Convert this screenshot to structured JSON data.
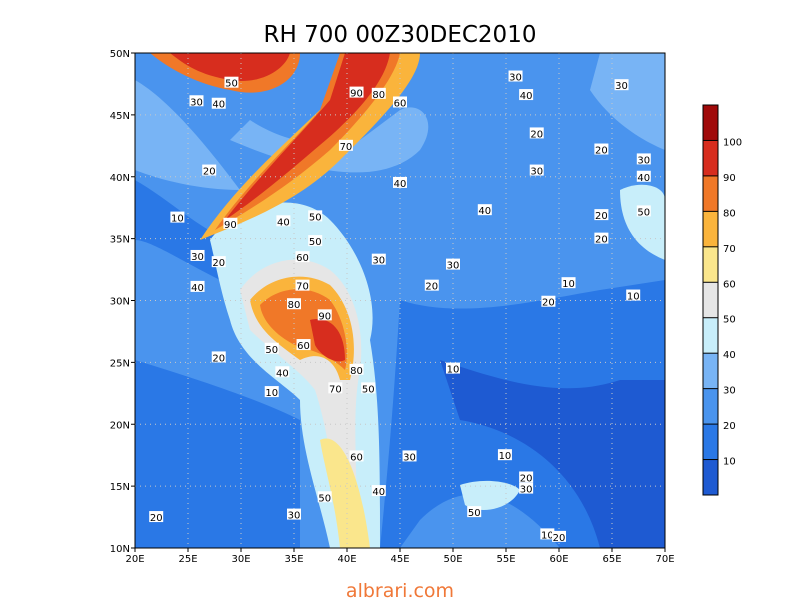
{
  "chart_data": {
    "type": "contour_map",
    "title": "RH 700 00Z30DEC2010",
    "footer": "albrari.com",
    "xlim": [
      20,
      70
    ],
    "ylim": [
      10,
      50
    ],
    "xticks": [
      {
        "value": 20,
        "label": "20E"
      },
      {
        "value": 25,
        "label": "25E"
      },
      {
        "value": 30,
        "label": "30E"
      },
      {
        "value": 35,
        "label": "35E"
      },
      {
        "value": 40,
        "label": "40E"
      },
      {
        "value": 45,
        "label": "45E"
      },
      {
        "value": 50,
        "label": "50E"
      },
      {
        "value": 55,
        "label": "55E"
      },
      {
        "value": 60,
        "label": "60E"
      },
      {
        "value": 65,
        "label": "65E"
      },
      {
        "value": 70,
        "label": "70E"
      }
    ],
    "yticks": [
      {
        "value": 10,
        "label": "10N"
      },
      {
        "value": 15,
        "label": "15N"
      },
      {
        "value": 20,
        "label": "20N"
      },
      {
        "value": 25,
        "label": "25N"
      },
      {
        "value": 30,
        "label": "30N"
      },
      {
        "value": 35,
        "label": "35N"
      },
      {
        "value": 40,
        "label": "40N"
      },
      {
        "value": 45,
        "label": "45N"
      },
      {
        "value": 50,
        "label": "50N"
      }
    ],
    "grid": true,
    "colorbar": {
      "levels": [
        10,
        20,
        30,
        40,
        50,
        60,
        70,
        80,
        90,
        100
      ],
      "colors": [
        "#1e5ad2",
        "#2a78e6",
        "#4a94ee",
        "#78b4f5",
        "#c8eefa",
        "#e6e6e6",
        "#fae68c",
        "#fab43c",
        "#f07828",
        "#d72d1e",
        "#a00a0a"
      ]
    },
    "contour_labels": [
      {
        "value": 50,
        "lon": 29.1,
        "lat": 47.6
      },
      {
        "value": 30,
        "lon": 25.8,
        "lat": 46.1
      },
      {
        "value": 40,
        "lon": 27.9,
        "lat": 45.9
      },
      {
        "value": 90,
        "lon": 40.9,
        "lat": 46.8
      },
      {
        "value": 80,
        "lon": 43.0,
        "lat": 46.7
      },
      {
        "value": 60,
        "lon": 45.0,
        "lat": 46.0
      },
      {
        "value": 30,
        "lon": 55.9,
        "lat": 48.1
      },
      {
        "value": 40,
        "lon": 56.9,
        "lat": 46.6
      },
      {
        "value": 30,
        "lon": 65.9,
        "lat": 47.4
      },
      {
        "value": 20,
        "lon": 57.9,
        "lat": 43.5
      },
      {
        "value": 70,
        "lon": 39.9,
        "lat": 42.5
      },
      {
        "value": 20,
        "lon": 27.0,
        "lat": 40.5
      },
      {
        "value": 40,
        "lon": 45.0,
        "lat": 39.5
      },
      {
        "value": 30,
        "lon": 57.9,
        "lat": 40.5
      },
      {
        "value": 20,
        "lon": 64.0,
        "lat": 42.2
      },
      {
        "value": 30,
        "lon": 68.0,
        "lat": 41.4
      },
      {
        "value": 40,
        "lon": 68.0,
        "lat": 40.0
      },
      {
        "value": 10,
        "lon": 24.0,
        "lat": 36.7
      },
      {
        "value": 50,
        "lon": 37.0,
        "lat": 36.8
      },
      {
        "value": 40,
        "lon": 34.0,
        "lat": 36.4
      },
      {
        "value": 90,
        "lon": 29.0,
        "lat": 36.2
      },
      {
        "value": 50,
        "lon": 68.0,
        "lat": 37.2
      },
      {
        "value": 20,
        "lon": 64.0,
        "lat": 36.9
      },
      {
        "value": 40,
        "lon": 53.0,
        "lat": 37.3
      },
      {
        "value": 50,
        "lon": 37.0,
        "lat": 34.8
      },
      {
        "value": 20,
        "lon": 64.0,
        "lat": 35.0
      },
      {
        "value": 30,
        "lon": 25.9,
        "lat": 33.6
      },
      {
        "value": 20,
        "lon": 27.9,
        "lat": 33.1
      },
      {
        "value": 60,
        "lon": 35.8,
        "lat": 33.5
      },
      {
        "value": 30,
        "lon": 43.0,
        "lat": 33.3
      },
      {
        "value": 30,
        "lon": 50.0,
        "lat": 32.9
      },
      {
        "value": 40,
        "lon": 25.9,
        "lat": 31.1
      },
      {
        "value": 70,
        "lon": 35.8,
        "lat": 31.2
      },
      {
        "value": 20,
        "lon": 48.0,
        "lat": 31.2
      },
      {
        "value": 10,
        "lon": 60.9,
        "lat": 31.4
      },
      {
        "value": 10,
        "lon": 67.0,
        "lat": 30.4
      },
      {
        "value": 20,
        "lon": 59.0,
        "lat": 29.9
      },
      {
        "value": 80,
        "lon": 35.0,
        "lat": 29.7
      },
      {
        "value": 90,
        "lon": 37.9,
        "lat": 28.8
      },
      {
        "value": 50,
        "lon": 32.9,
        "lat": 26.1
      },
      {
        "value": 60,
        "lon": 35.9,
        "lat": 26.4
      },
      {
        "value": 20,
        "lon": 27.9,
        "lat": 25.4
      },
      {
        "value": 80,
        "lon": 40.9,
        "lat": 24.4
      },
      {
        "value": 10,
        "lon": 50.0,
        "lat": 24.5
      },
      {
        "value": 40,
        "lon": 33.9,
        "lat": 24.2
      },
      {
        "value": 50,
        "lon": 42.0,
        "lat": 22.9
      },
      {
        "value": 10,
        "lon": 32.9,
        "lat": 22.6
      },
      {
        "value": 70,
        "lon": 38.9,
        "lat": 22.9
      },
      {
        "value": 60,
        "lon": 40.9,
        "lat": 17.4
      },
      {
        "value": 30,
        "lon": 45.9,
        "lat": 17.4
      },
      {
        "value": 10,
        "lon": 54.9,
        "lat": 17.5
      },
      {
        "value": 20,
        "lon": 56.9,
        "lat": 15.7
      },
      {
        "value": 30,
        "lon": 56.9,
        "lat": 14.8
      },
      {
        "value": 40,
        "lon": 43.0,
        "lat": 14.6
      },
      {
        "value": 50,
        "lon": 37.9,
        "lat": 14.1
      },
      {
        "value": 50,
        "lon": 52.0,
        "lat": 12.9
      },
      {
        "value": 30,
        "lon": 35.0,
        "lat": 12.7
      },
      {
        "value": 20,
        "lon": 22.0,
        "lat": 12.5
      },
      {
        "value": 10,
        "lon": 58.9,
        "lat": 11.1
      },
      {
        "value": 20,
        "lon": 60.0,
        "lat": 10.9
      }
    ]
  }
}
